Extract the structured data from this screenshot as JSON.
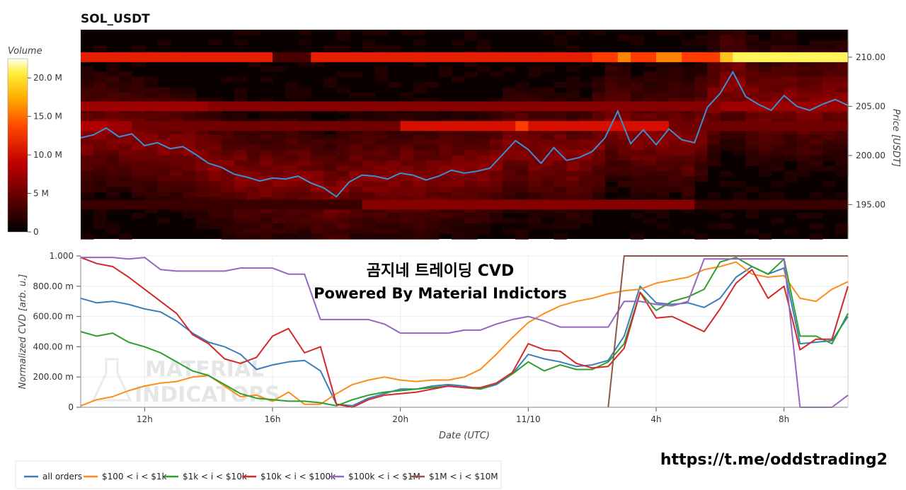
{
  "colors": {
    "all_orders": "#3a7dbb",
    "r100_1k": "#ff8c1a",
    "r1k_10k": "#2ca02c",
    "r10k_100k": "#d62728",
    "r100k_1m": "#9467bd",
    "r1m_10m": "#8c564b",
    "heatmap_dark": "#0a0000",
    "heatmap_hot": "#fff35c"
  },
  "chart_data": [
    {
      "type": "heatmap",
      "title": "SOL_USDT",
      "ylabel": "Price [USDT]",
      "ylim": [
        191.5,
        212.8
      ],
      "y_ticks": [
        "195.00",
        "200.00",
        "205.00",
        "210.00"
      ],
      "y_tick_values": [
        195,
        200,
        205,
        210
      ],
      "colorbar": {
        "label": "Volume",
        "ticks": [
          "0",
          "5 M",
          "10.0 M",
          "15.0 M",
          "20.0 M"
        ],
        "tick_values": [
          0,
          5,
          10,
          15,
          20
        ],
        "max": 22.5
      },
      "price_line": {
        "color": "#3a8fd6",
        "x_hours": [
          0,
          0.5,
          1,
          1.5,
          2,
          2.5,
          3,
          3.5,
          4,
          4.5,
          5,
          5.5,
          6,
          6.5,
          7,
          7.5,
          8,
          8.5,
          9,
          9.5,
          10,
          10.5,
          11,
          11.5,
          12,
          12.5,
          13,
          13.5,
          14,
          14.5,
          15,
          15.5,
          16,
          16.5,
          17,
          17.5,
          18,
          18.5,
          19,
          19.5,
          20,
          20.5,
          21,
          21.5,
          22,
          22.5,
          23,
          23.5,
          24,
          24.5,
          25,
          25.5,
          26,
          26.5,
          27,
          27.5,
          28,
          28.5,
          29,
          29.5,
          30
        ],
        "price": [
          201.8,
          202.1,
          202.8,
          201.9,
          202.2,
          201.0,
          201.3,
          200.7,
          200.9,
          200.1,
          199.2,
          198.8,
          198.1,
          197.8,
          197.4,
          197.7,
          197.6,
          197.9,
          197.2,
          196.7,
          195.8,
          197.3,
          198.0,
          197.9,
          197.6,
          198.2,
          198.0,
          197.5,
          197.9,
          198.5,
          198.2,
          198.4,
          198.7,
          200.1,
          201.5,
          200.6,
          199.2,
          200.8,
          199.5,
          199.8,
          200.4,
          201.8,
          204.5,
          201.2,
          202.6,
          201.1,
          202.7,
          201.6,
          201.3,
          204.9,
          206.3,
          208.5,
          206.0,
          205.2,
          204.6,
          206.1,
          205.0,
          204.6,
          205.2,
          205.7,
          205.1
        ]
      },
      "levels": [
        {
          "price": 210.0,
          "intensity": [
            0.6,
            0.6,
            0.6,
            0.6,
            0.6,
            0.6,
            0.6,
            0.6,
            0.6,
            0.6,
            0.6,
            0.6,
            0.6,
            0.6,
            0.6,
            0.2,
            0.2,
            0.2,
            0.6,
            0.6,
            0.6,
            0.6,
            0.6,
            0.6,
            0.6,
            0.6,
            0.6,
            0.6,
            0.6,
            0.6,
            0.6,
            0.6,
            0.6,
            0.6,
            0.6,
            0.6,
            0.6,
            0.6,
            0.6,
            0.6,
            0.7,
            0.7,
            0.8,
            0.7,
            0.7,
            0.8,
            0.8,
            0.7,
            0.7,
            0.7,
            0.9,
            1.0,
            1.0,
            1.0,
            1.0,
            1.0,
            1.0,
            1.0,
            1.0,
            1.0
          ]
        },
        {
          "price": 205.0,
          "intensity": [
            0.4,
            0.4,
            0.4,
            0.4,
            0.4,
            0.4,
            0.4,
            0.4,
            0.4,
            0.4,
            0.35,
            0.35,
            0.35,
            0.35,
            0.35,
            0.35,
            0.35,
            0.35,
            0.35,
            0.35,
            0.35,
            0.35,
            0.35,
            0.35,
            0.35,
            0.35,
            0.35,
            0.35,
            0.35,
            0.35,
            0.35,
            0.35,
            0.35,
            0.35,
            0.35,
            0.35,
            0.35,
            0.35,
            0.35,
            0.35,
            0.35,
            0.35,
            0.35,
            0.35,
            0.35,
            0.35,
            0.35,
            0.35,
            0.35,
            0.35,
            0.4,
            0.4,
            0.4,
            0.4,
            0.4,
            0.4,
            0.4,
            0.4,
            0.4,
            0.4
          ]
        },
        {
          "price": 203.0,
          "intensity": [
            0.45,
            0.45,
            0.4,
            0.4,
            0.3,
            0.3,
            0.3,
            0.3,
            0.3,
            0.3,
            0.3,
            0.3,
            0.3,
            0.3,
            0.3,
            0.3,
            0.3,
            0.3,
            0.3,
            0.3,
            0.3,
            0.3,
            0.3,
            0.3,
            0.3,
            0.55,
            0.55,
            0.55,
            0.55,
            0.55,
            0.55,
            0.55,
            0.55,
            0.55,
            0.7,
            0.55,
            0.55,
            0.55,
            0.55,
            0.55,
            0.55,
            0.55,
            0.55,
            0.55,
            0.55,
            0.55,
            0.3,
            0.3,
            0.3,
            0.3,
            0.3,
            0.3,
            0.3,
            0.3,
            0.3,
            0.3,
            0.3,
            0.3,
            0.3,
            0.3
          ]
        },
        {
          "price": 195.0,
          "intensity": [
            0.15,
            0.15,
            0.15,
            0.15,
            0.15,
            0.15,
            0.15,
            0.15,
            0.15,
            0.15,
            0.15,
            0.15,
            0.15,
            0.15,
            0.15,
            0.15,
            0.15,
            0.15,
            0.15,
            0.15,
            0.15,
            0.15,
            0.35,
            0.35,
            0.35,
            0.35,
            0.35,
            0.35,
            0.35,
            0.35,
            0.35,
            0.35,
            0.35,
            0.35,
            0.35,
            0.35,
            0.35,
            0.35,
            0.35,
            0.35,
            0.35,
            0.35,
            0.35,
            0.35,
            0.35,
            0.35,
            0.35,
            0.35,
            0.15,
            0.15,
            0.15,
            0.15,
            0.15,
            0.15,
            0.15,
            0.15,
            0.15,
            0.15,
            0.15,
            0.15
          ]
        }
      ]
    },
    {
      "type": "line",
      "ylabel": "Normalized CVD [arb. u.]",
      "xlabel": "Date (UTC)",
      "ylim": [
        0,
        1
      ],
      "y_ticks": [
        "0",
        "200.00 m",
        "400.00 m",
        "600.00 m",
        "800.00 m",
        "1.000"
      ],
      "y_tick_values": [
        0,
        0.2,
        0.4,
        0.6,
        0.8,
        1.0
      ],
      "x_ticks": [
        "12h",
        "16h",
        "20h",
        "11/10",
        "4h",
        "8h"
      ],
      "x_tick_hours": [
        2,
        6,
        10,
        14,
        18,
        22
      ],
      "x": [
        0,
        0.5,
        1,
        1.5,
        2,
        2.5,
        3,
        3.5,
        4,
        4.5,
        5,
        5.5,
        6,
        6.5,
        7,
        7.5,
        8,
        8.5,
        9,
        9.5,
        10,
        10.5,
        11,
        11.5,
        12,
        12.5,
        13,
        13.5,
        14,
        14.5,
        15,
        15.5,
        16,
        16.5,
        17,
        17.5,
        18,
        18.5,
        19,
        19.5,
        20,
        20.5,
        21,
        21.5,
        22,
        22.5,
        23,
        23.5,
        24
      ],
      "series": [
        {
          "name": "all orders",
          "color_key": "all_orders",
          "values": [
            0.72,
            0.69,
            0.7,
            0.68,
            0.65,
            0.63,
            0.57,
            0.49,
            0.43,
            0.4,
            0.35,
            0.25,
            0.28,
            0.3,
            0.31,
            0.24,
            0.02,
            0.01,
            0.06,
            0.09,
            0.12,
            0.12,
            0.14,
            0.15,
            0.14,
            0.12,
            0.15,
            0.22,
            0.35,
            0.32,
            0.3,
            0.27,
            0.28,
            0.31,
            0.47,
            0.8,
            0.69,
            0.68,
            0.69,
            0.66,
            0.72,
            0.86,
            0.93,
            0.88,
            0.92,
            0.42,
            0.43,
            0.44,
            0.6
          ]
        },
        {
          "name": "$100 < i < $1k",
          "color_key": "r100_1k",
          "values": [
            0.01,
            0.05,
            0.07,
            0.11,
            0.14,
            0.16,
            0.17,
            0.2,
            0.21,
            0.14,
            0.07,
            0.08,
            0.04,
            0.1,
            0.02,
            0.02,
            0.09,
            0.15,
            0.18,
            0.2,
            0.18,
            0.17,
            0.18,
            0.18,
            0.2,
            0.25,
            0.35,
            0.46,
            0.56,
            0.62,
            0.67,
            0.7,
            0.72,
            0.75,
            0.77,
            0.78,
            0.82,
            0.84,
            0.86,
            0.91,
            0.93,
            0.96,
            0.88,
            0.86,
            0.87,
            0.72,
            0.7,
            0.78,
            0.83
          ]
        },
        {
          "name": "$1k < i < $10k",
          "color_key": "r1k_10k",
          "values": [
            0.5,
            0.47,
            0.49,
            0.43,
            0.4,
            0.36,
            0.3,
            0.24,
            0.21,
            0.15,
            0.09,
            0.06,
            0.05,
            0.04,
            0.04,
            0.03,
            0.01,
            0.05,
            0.08,
            0.1,
            0.11,
            0.12,
            0.13,
            0.14,
            0.13,
            0.12,
            0.16,
            0.22,
            0.3,
            0.24,
            0.28,
            0.25,
            0.25,
            0.3,
            0.42,
            0.76,
            0.64,
            0.7,
            0.73,
            0.78,
            0.96,
            0.99,
            0.93,
            0.88,
            0.98,
            0.47,
            0.47,
            0.42,
            0.62
          ]
        },
        {
          "name": "$10k < i < $100k",
          "color_key": "r10k_100k",
          "values": [
            0.99,
            0.95,
            0.93,
            0.86,
            0.78,
            0.7,
            0.62,
            0.48,
            0.42,
            0.32,
            0.29,
            0.33,
            0.47,
            0.52,
            0.36,
            0.4,
            0.02,
            0.0,
            0.05,
            0.08,
            0.09,
            0.1,
            0.12,
            0.14,
            0.13,
            0.13,
            0.16,
            0.23,
            0.42,
            0.38,
            0.37,
            0.29,
            0.26,
            0.27,
            0.39,
            0.76,
            0.59,
            0.6,
            0.55,
            0.5,
            0.65,
            0.82,
            0.91,
            0.72,
            0.8,
            0.38,
            0.45,
            0.45,
            0.8
          ]
        },
        {
          "name": "$100k < i < $1M",
          "color_key": "r100k_1m",
          "values": [
            0.99,
            0.99,
            0.99,
            0.98,
            0.99,
            0.91,
            0.9,
            0.9,
            0.9,
            0.9,
            0.92,
            0.92,
            0.92,
            0.88,
            0.88,
            0.58,
            0.58,
            0.58,
            0.58,
            0.55,
            0.49,
            0.49,
            0.49,
            0.49,
            0.51,
            0.51,
            0.55,
            0.58,
            0.6,
            0.57,
            0.53,
            0.53,
            0.53,
            0.53,
            0.7,
            0.7,
            0.68,
            0.67,
            0.7,
            0.98,
            0.98,
            0.98,
            0.98,
            0.98,
            0.98,
            0.0,
            0.0,
            0.0,
            0.08
          ]
        },
        {
          "name": "$1M < i < $10M",
          "color_key": "r1m_10m",
          "values": [
            null,
            null,
            null,
            null,
            null,
            null,
            null,
            null,
            null,
            null,
            null,
            null,
            null,
            null,
            null,
            null,
            null,
            null,
            null,
            null,
            null,
            null,
            null,
            null,
            null,
            null,
            null,
            null,
            null,
            null,
            null,
            null,
            null,
            0.0,
            1.0,
            1.0,
            1.0,
            1.0,
            1.0,
            1.0,
            1.0,
            1.0,
            1.0,
            1.0,
            1.0,
            1.0,
            1.0,
            1.0,
            1.0
          ]
        }
      ],
      "legend_placement": "bottom-left"
    }
  ],
  "overlay": {
    "line1": "곰지네 트레이딩 CVD",
    "line2": "Powered By Material Indictors"
  },
  "watermark": {
    "line1": "MATERIAL",
    "line2": "INDICATORS"
  },
  "footer": {
    "url": "https://t.me/oddstrading2"
  }
}
